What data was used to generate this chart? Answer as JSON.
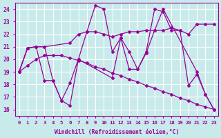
{
  "xlabel": "Windchill (Refroidissement éolien,°C)",
  "background_color": "#c8eaea",
  "line_color": "#990099",
  "grid_color": "#ffffff",
  "xlim": [
    -0.5,
    23.5
  ],
  "ylim": [
    15.5,
    24.5
  ],
  "xticks": [
    0,
    1,
    2,
    3,
    4,
    5,
    6,
    7,
    8,
    9,
    10,
    11,
    12,
    13,
    14,
    15,
    16,
    17,
    18,
    19,
    20,
    21,
    22,
    23
  ],
  "yticks": [
    16,
    17,
    18,
    19,
    20,
    21,
    22,
    23,
    24
  ],
  "series": [
    {
      "x": [
        0,
        1,
        2,
        3,
        4,
        5,
        6,
        7,
        8,
        9,
        10,
        11,
        12,
        13,
        14,
        15,
        16,
        17,
        21,
        22,
        23
      ],
      "y": [
        19,
        20.9,
        21.0,
        21.0,
        18.3,
        16.7,
        16.3,
        20.0,
        22.2,
        24.3,
        24.0,
        20.6,
        21.7,
        20.6,
        19.2,
        20.5,
        22.3,
        24.0,
        19.0,
        17.2,
        16.0
      ]
    },
    {
      "x": [
        0,
        1,
        2,
        3,
        6,
        7,
        8,
        9,
        10,
        11,
        12,
        13,
        14,
        15,
        16,
        17,
        18,
        19,
        20,
        21,
        22,
        23
      ],
      "y": [
        19,
        20.9,
        21.0,
        21.0,
        21.3,
        22.0,
        22.2,
        22.2,
        22.0,
        21.8,
        22.0,
        22.2,
        22.2,
        22.3,
        22.3,
        22.3,
        22.5,
        22.3,
        22.0,
        22.8,
        22.8,
        22.8
      ]
    },
    {
      "x": [
        0,
        1,
        2,
        3,
        4,
        5,
        6,
        7,
        11,
        12,
        13,
        14,
        15,
        16,
        17,
        18,
        19,
        20,
        21,
        22,
        23
      ],
      "y": [
        19,
        20.9,
        21.0,
        18.3,
        18.3,
        16.7,
        18.1,
        20.0,
        18.5,
        21.7,
        19.2,
        19.2,
        20.6,
        24.0,
        23.8,
        22.3,
        22.3,
        17.9,
        18.8,
        17.2,
        16.0
      ]
    },
    {
      "x": [
        0,
        1,
        2,
        3,
        4,
        5,
        6,
        7,
        8,
        9,
        10,
        11,
        12,
        13,
        14,
        15,
        16,
        17,
        18,
        19,
        20,
        21,
        22,
        23
      ],
      "y": [
        19.0,
        19.5,
        20.0,
        20.3,
        20.3,
        20.3,
        20.1,
        19.9,
        19.7,
        19.4,
        19.2,
        18.9,
        18.7,
        18.4,
        18.2,
        17.9,
        17.7,
        17.4,
        17.2,
        16.9,
        16.7,
        16.4,
        16.2,
        16.0
      ]
    }
  ]
}
